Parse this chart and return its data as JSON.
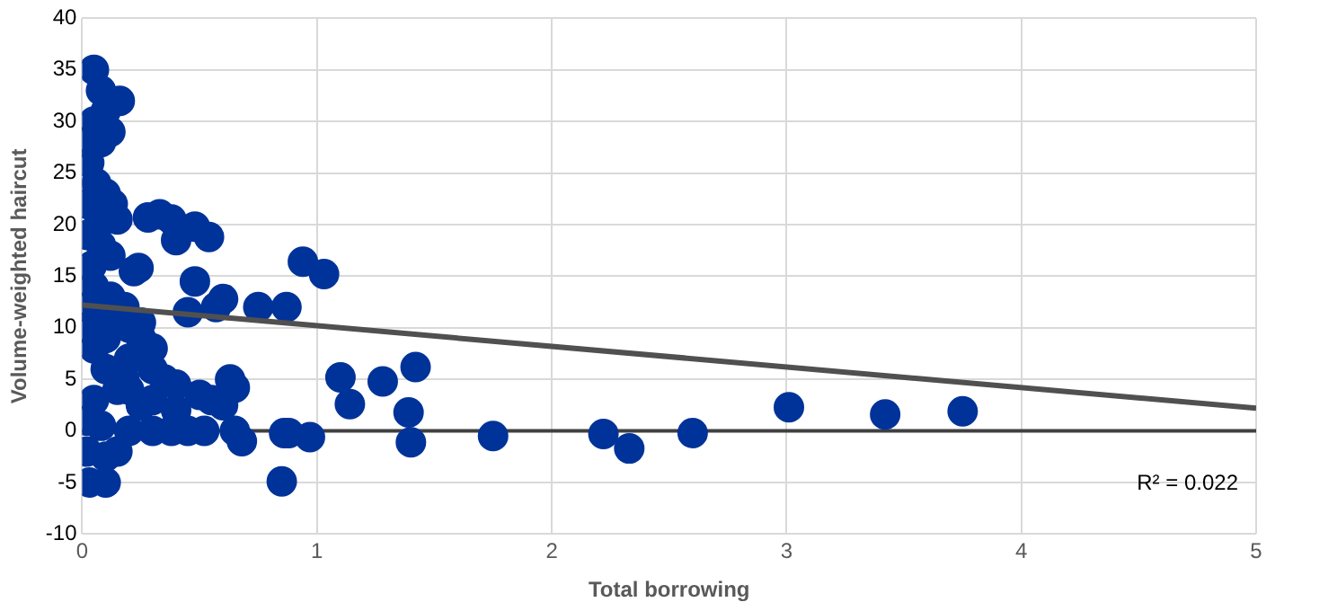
{
  "chart_data": {
    "type": "scatter",
    "xlabel": "Total borrowing",
    "ylabel": "Volume-weighted haircut",
    "xlim": [
      0,
      5
    ],
    "xticks": [
      0,
      1,
      2,
      3,
      4,
      5
    ],
    "ylim": [
      -10,
      40
    ],
    "yticks": [
      -10,
      -5,
      0,
      5,
      10,
      15,
      20,
      25,
      30,
      35,
      40
    ],
    "grid": true,
    "legend": false,
    "marker": "circle",
    "series": [
      {
        "color": "#003399",
        "x": [
          1.75,
          2.22,
          2.33,
          2.6,
          3.01,
          3.42,
          3.75,
          0.94,
          1.03,
          0.87,
          0.75,
          1.1,
          1.28,
          1.42,
          1.14,
          1.39,
          1.4,
          0.97,
          0.86,
          0.88,
          0.85,
          0.68,
          0.65,
          0.6,
          0.57,
          0.54,
          0.48,
          0.38,
          0.33,
          0.28,
          0.4,
          0.45,
          0.22,
          0.24,
          0.48,
          0.63,
          0.65,
          0.5,
          0.55,
          0.6,
          0.52,
          0.45,
          0.38,
          0.3,
          0.2,
          0.15,
          0.1,
          0.03,
          0.1,
          0.05,
          0.08,
          0.16,
          0.1,
          0.05,
          0.08,
          0.03,
          0.06,
          0.1,
          0.13,
          0.15,
          0.02,
          0.08,
          0.04,
          0.05,
          0.02,
          0.1,
          0.2,
          0.25,
          0.3,
          0.2,
          0.1,
          0.35,
          0.4,
          0.3,
          0.25,
          0.15,
          0.05,
          0.02,
          0.08,
          0.02,
          0.18,
          0.2,
          0.05,
          0.02,
          0,
          0,
          0.12,
          0.12,
          0.18,
          0.25,
          0.3,
          0.4,
          0.1,
          0.07,
          0.12
        ],
        "values": [
          -0.5,
          -0.3,
          -1.7,
          -0.2,
          2.3,
          1.6,
          1.9,
          16.4,
          15.2,
          12,
          12,
          5.2,
          4.8,
          6.2,
          2.6,
          1.8,
          -1.1,
          -0.6,
          -0.2,
          -0.2,
          -4.9,
          -1,
          0,
          12.8,
          12,
          18.8,
          19.8,
          20.5,
          21,
          20.7,
          18.5,
          11.5,
          15.5,
          15.8,
          14.5,
          5,
          4.2,
          3.5,
          3,
          2.5,
          0,
          0,
          0,
          0,
          0,
          -2,
          -2.5,
          -5,
          -5,
          35,
          33,
          32,
          31,
          30,
          28,
          26,
          24,
          23,
          22,
          20.5,
          19,
          18,
          16,
          14,
          12,
          11,
          10,
          9,
          8,
          7,
          6,
          5,
          4.5,
          3,
          2.5,
          4,
          3,
          1,
          0.5,
          -2,
          5,
          4,
          8,
          22,
          28,
          10,
          17,
          13,
          12,
          10.5,
          6,
          2,
          9,
          20,
          29
        ]
      },
      {
        "type": "line",
        "color": "#505050",
        "x": [
          0,
          5
        ],
        "values": [
          12.2,
          2.2
        ],
        "marker": "none"
      }
    ],
    "ref_lines": [
      {
        "axis": "y",
        "value": 0,
        "color": "#404040"
      }
    ],
    "annotations": [
      "R² = 0.022"
    ]
  }
}
